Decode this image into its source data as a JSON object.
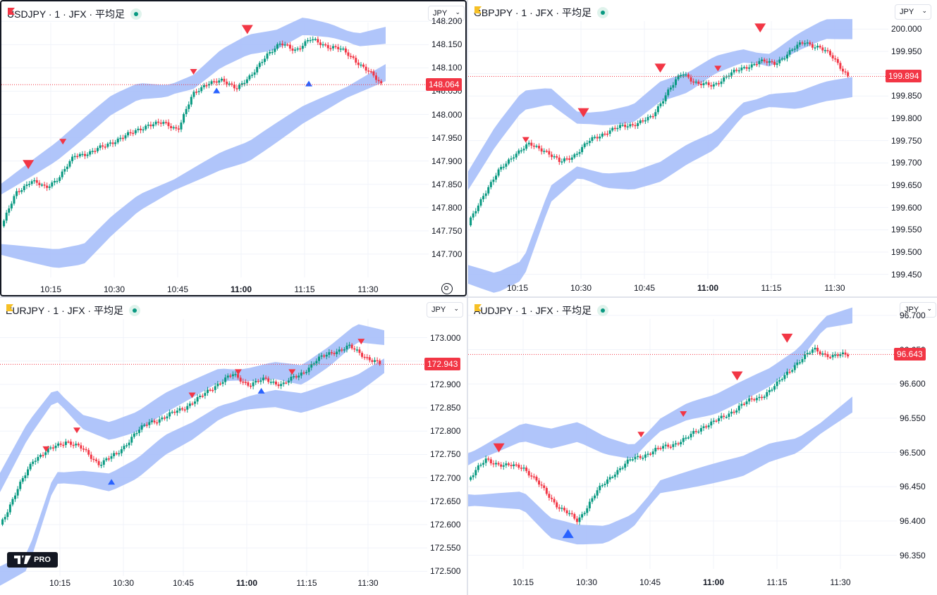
{
  "panes": [
    {
      "id": "usdjpy",
      "title": "USDJPY · 1 · JFX · 平均足",
      "flag_color": "#f23645",
      "currency": "JPY",
      "price_labels": [
        "148.200",
        "148.150",
        "148.100",
        "148.050",
        "148.000",
        "147.950",
        "147.900",
        "147.850",
        "147.800",
        "147.750",
        "147.700"
      ],
      "price_range": [
        147.65,
        148.205
      ],
      "time_labels": [
        "10:15",
        "10:30",
        "10:45",
        "11:00",
        "11:15",
        "11:30"
      ],
      "time_bold_index": 3,
      "last_price": "148.064",
      "last_value": 148.064,
      "trend": [
        147.76,
        147.83,
        147.86,
        147.84,
        147.87,
        147.91,
        147.92,
        147.93,
        147.95,
        147.96,
        147.98,
        147.98,
        147.97,
        148.04,
        148.07,
        148.07,
        148.06,
        148.08,
        148.13,
        148.15,
        148.14,
        148.16,
        148.15,
        148.14,
        148.12,
        148.09,
        148.06
      ],
      "upper": [
        147.84,
        147.88,
        147.92,
        147.97,
        148.02,
        148.05,
        148.05,
        148.07,
        148.12,
        148.15,
        148.16,
        148.19,
        148.18,
        148.16,
        148.17
      ],
      "lower": [
        147.71,
        147.7,
        147.69,
        147.7,
        147.76,
        147.81,
        147.84,
        147.87,
        147.9,
        147.92,
        147.96,
        148.0,
        148.03,
        148.06,
        148.09
      ],
      "markers": [
        {
          "type": "down",
          "size": "large",
          "pos": 0.07,
          "value": 147.89
        },
        {
          "type": "down",
          "size": "small",
          "pos": 0.16,
          "value": 147.94
        },
        {
          "type": "down",
          "size": "small",
          "pos": 0.5,
          "value": 148.09
        },
        {
          "type": "up",
          "size": "small",
          "pos": 0.56,
          "value": 148.05
        },
        {
          "type": "down",
          "size": "large",
          "pos": 0.64,
          "value": 148.18
        },
        {
          "type": "up",
          "size": "small",
          "pos": 0.8,
          "value": 148.065
        }
      ]
    },
    {
      "id": "gbpjpy",
      "title": "GBPJPY · 1 · JFX · 平均足",
      "flag_color": "#f6c026",
      "currency": "JPY",
      "price_labels": [
        "200.000",
        "199.950",
        "199.900",
        "199.850",
        "199.800",
        "199.750",
        "199.700",
        "199.650",
        "199.600",
        "199.550",
        "199.500",
        "199.450"
      ],
      "price_range": [
        199.44,
        200.01
      ],
      "time_labels": [
        "10:15",
        "10:30",
        "10:45",
        "11:00",
        "11:15",
        "11:30"
      ],
      "time_bold_index": 3,
      "last_price": "199.894",
      "last_value": 199.894,
      "trend": [
        199.56,
        199.63,
        199.68,
        199.72,
        199.74,
        199.73,
        199.7,
        199.72,
        199.75,
        199.77,
        199.78,
        199.79,
        199.8,
        199.86,
        199.9,
        199.88,
        199.87,
        199.9,
        199.91,
        199.93,
        199.92,
        199.95,
        199.97,
        199.96,
        199.93,
        199.89
      ],
      "upper": [
        199.66,
        199.76,
        199.84,
        199.85,
        199.8,
        199.8,
        199.81,
        199.86,
        199.88,
        199.92,
        199.94,
        199.93,
        199.97,
        200.0,
        200.0
      ],
      "lower": [
        199.45,
        199.43,
        199.46,
        199.63,
        199.68,
        199.66,
        199.66,
        199.68,
        199.72,
        199.75,
        199.82,
        199.84,
        199.84,
        199.86,
        199.87
      ],
      "markers": [
        {
          "type": "down",
          "size": "small",
          "pos": 0.15,
          "value": 199.75
        },
        {
          "type": "down",
          "size": "large",
          "pos": 0.3,
          "value": 199.81
        },
        {
          "type": "down",
          "size": "large",
          "pos": 0.5,
          "value": 199.91
        },
        {
          "type": "down",
          "size": "small",
          "pos": 0.65,
          "value": 199.91
        },
        {
          "type": "down",
          "size": "large",
          "pos": 0.76,
          "value": 200.0
        }
      ]
    },
    {
      "id": "eurjpy",
      "title": "EURJPY · 1 · JFX · 平均足",
      "flag_color": "#f6c026",
      "currency": "JPY",
      "price_labels": [
        "173.000",
        "172.950",
        "172.900",
        "172.850",
        "172.800",
        "172.750",
        "172.700",
        "172.650",
        "172.600",
        "172.550",
        "172.500"
      ],
      "price_range": [
        172.49,
        173.04
      ],
      "time_labels": [
        "10:15",
        "10:30",
        "10:45",
        "11:00",
        "11:15",
        "11:30"
      ],
      "time_bold_index": 3,
      "last_price": "172.943",
      "last_value": 172.943,
      "trend": [
        172.6,
        172.67,
        172.74,
        172.76,
        172.78,
        172.76,
        172.73,
        172.75,
        172.79,
        172.82,
        172.83,
        172.85,
        172.87,
        172.9,
        172.92,
        172.9,
        172.91,
        172.9,
        172.92,
        172.95,
        172.97,
        172.98,
        172.96,
        172.94
      ],
      "upper": [
        172.69,
        172.8,
        172.88,
        172.82,
        172.8,
        172.82,
        172.86,
        172.89,
        172.92,
        172.92,
        172.93,
        172.92,
        172.96,
        173.01,
        173.0
      ],
      "lower": [
        172.49,
        172.52,
        172.7,
        172.7,
        172.69,
        172.72,
        172.77,
        172.8,
        172.84,
        172.86,
        172.87,
        172.86,
        172.88,
        172.9,
        172.94
      ],
      "markers": [
        {
          "type": "down",
          "size": "small",
          "pos": 0.12,
          "value": 172.76
        },
        {
          "type": "down",
          "size": "small",
          "pos": 0.2,
          "value": 172.8
        },
        {
          "type": "up",
          "size": "small",
          "pos": 0.29,
          "value": 172.69
        },
        {
          "type": "down",
          "size": "small",
          "pos": 0.5,
          "value": 172.875
        },
        {
          "type": "down",
          "size": "small",
          "pos": 0.62,
          "value": 172.925
        },
        {
          "type": "up",
          "size": "small",
          "pos": 0.68,
          "value": 172.885
        },
        {
          "type": "down",
          "size": "small",
          "pos": 0.76,
          "value": 172.925
        },
        {
          "type": "down",
          "size": "small",
          "pos": 0.94,
          "value": 172.99
        }
      ]
    },
    {
      "id": "audjpy",
      "title": "AUDJPY · 1 · JFX · 平均足",
      "flag_color": "#f6c026",
      "currency": "JPY",
      "price_labels": [
        "96.700",
        "96.650",
        "96.600",
        "96.550",
        "96.500",
        "96.450",
        "96.400",
        "96.350"
      ],
      "price_range": [
        96.33,
        96.705
      ],
      "time_labels": [
        "10:15",
        "10:30",
        "10:45",
        "11:00",
        "11:15",
        "11:30"
      ],
      "time_bold_index": 3,
      "last_price": "96.643",
      "last_value": 96.643,
      "trend": [
        96.46,
        96.49,
        96.48,
        96.48,
        96.45,
        96.42,
        96.4,
        96.44,
        96.47,
        96.49,
        96.5,
        96.51,
        96.52,
        96.54,
        96.55,
        96.57,
        96.58,
        96.6,
        96.63,
        96.65,
        96.64,
        96.643
      ],
      "upper": [
        96.49,
        96.51,
        96.53,
        96.52,
        96.53,
        96.51,
        96.5,
        96.54,
        96.56,
        96.57,
        96.59,
        96.61,
        96.64,
        96.69,
        96.7
      ],
      "lower": [
        96.43,
        96.43,
        96.43,
        96.39,
        96.38,
        96.38,
        96.4,
        96.45,
        96.46,
        96.47,
        96.48,
        96.5,
        96.51,
        96.54,
        96.57
      ],
      "markers": [
        {
          "type": "down",
          "size": "large",
          "pos": 0.08,
          "value": 96.505
        },
        {
          "type": "up",
          "size": "large",
          "pos": 0.26,
          "value": 96.38
        },
        {
          "type": "down",
          "size": "small",
          "pos": 0.45,
          "value": 96.525
        },
        {
          "type": "down",
          "size": "small",
          "pos": 0.56,
          "value": 96.555
        },
        {
          "type": "down",
          "size": "large",
          "pos": 0.7,
          "value": 96.61
        },
        {
          "type": "down",
          "size": "large",
          "pos": 0.83,
          "value": 96.665
        }
      ]
    }
  ],
  "colors": {
    "up": "#089981",
    "down": "#f23645",
    "band": "#a7bff9",
    "marker_up": "#2962ff",
    "grid": "#f0f3fa",
    "last_line": "#f23645"
  },
  "logo": {
    "text": "PRO",
    "icon": "tradingview-logo-icon"
  },
  "settings_icon": "gear-icon"
}
